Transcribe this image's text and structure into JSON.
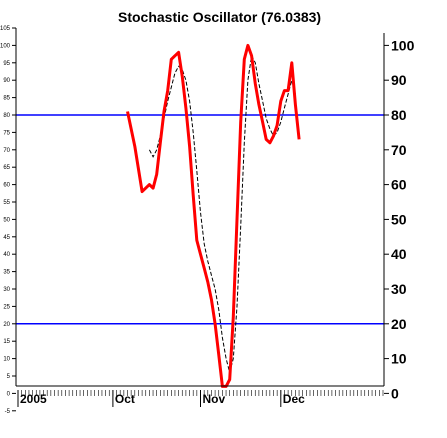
{
  "chart_data": {
    "type": "line",
    "title": "Stochastic Oscillator (76.0383)",
    "xlabel": "",
    "ylabel": "",
    "ylim": [
      -5,
      105
    ],
    "y_ticks_left": [
      "105",
      "100",
      "95",
      "90",
      "85",
      "80",
      "75",
      "70",
      "65",
      "60",
      "55",
      "50",
      "45",
      "40",
      "35",
      "30",
      "25",
      "20",
      "15",
      "10",
      "5",
      "0",
      "-5"
    ],
    "y_ticks_right": [
      "100",
      "90",
      "80",
      "70",
      "60",
      "50",
      "40",
      "30",
      "20",
      "10",
      "0"
    ],
    "reference_lines": [
      80,
      20
    ],
    "x_labels": [
      {
        "text": "2005",
        "index": 0
      },
      {
        "text": "Oct",
        "index": 26
      },
      {
        "text": "Nov",
        "index": 50
      },
      {
        "text": "Dec",
        "index": 72
      }
    ],
    "x_count": 101,
    "colors": {
      "k_line": "#ff0000",
      "d_line": "#000000",
      "reference": "#0000ff",
      "axis": "#000000"
    },
    "series": [
      {
        "values": [
          [
            30,
            81
          ],
          [
            32,
            71
          ],
          [
            34,
            58
          ],
          [
            36,
            60
          ],
          [
            37,
            59
          ],
          [
            38,
            63
          ],
          [
            39,
            72
          ],
          [
            40,
            81
          ],
          [
            41,
            87
          ],
          [
            42,
            96
          ],
          [
            43,
            97
          ],
          [
            44,
            98
          ],
          [
            45,
            91
          ],
          [
            46,
            82
          ],
          [
            47,
            71
          ],
          [
            48,
            57
          ],
          [
            49,
            44
          ],
          [
            50,
            40
          ],
          [
            51,
            36
          ],
          [
            52,
            32
          ],
          [
            53,
            27
          ],
          [
            54,
            20
          ],
          [
            55,
            11
          ],
          [
            56,
            2
          ],
          [
            57,
            2
          ],
          [
            58,
            4
          ],
          [
            59,
            22
          ],
          [
            60,
            50
          ],
          [
            61,
            78
          ],
          [
            62,
            96
          ],
          [
            63,
            100
          ],
          [
            64,
            97
          ],
          [
            65,
            89
          ],
          [
            66,
            83
          ],
          [
            67,
            78
          ],
          [
            68,
            73
          ],
          [
            69,
            72
          ],
          [
            70,
            74
          ],
          [
            71,
            77
          ],
          [
            72,
            84
          ],
          [
            73,
            87
          ],
          [
            74,
            87
          ],
          [
            75,
            95
          ],
          [
            76,
            83
          ],
          [
            77,
            73
          ]
        ]
      },
      {
        "values": [
          [
            36,
            70
          ],
          [
            37,
            68
          ],
          [
            38,
            70
          ],
          [
            39,
            74
          ],
          [
            40,
            79
          ],
          [
            41,
            84
          ],
          [
            42,
            88
          ],
          [
            43,
            92
          ],
          [
            44,
            94
          ],
          [
            45,
            93
          ],
          [
            46,
            90
          ],
          [
            47,
            84
          ],
          [
            48,
            75
          ],
          [
            49,
            64
          ],
          [
            50,
            52
          ],
          [
            51,
            43
          ],
          [
            52,
            38
          ],
          [
            53,
            34
          ],
          [
            54,
            30
          ],
          [
            55,
            24
          ],
          [
            56,
            16
          ],
          [
            57,
            10
          ],
          [
            58,
            6
          ],
          [
            59,
            10
          ],
          [
            60,
            25
          ],
          [
            61,
            48
          ],
          [
            62,
            72
          ],
          [
            63,
            90
          ],
          [
            64,
            97
          ],
          [
            65,
            95
          ],
          [
            66,
            89
          ],
          [
            67,
            84
          ],
          [
            68,
            79
          ],
          [
            69,
            76
          ],
          [
            70,
            74
          ],
          [
            71,
            75
          ],
          [
            72,
            78
          ],
          [
            73,
            82
          ],
          [
            74,
            86
          ],
          [
            75,
            90
          ],
          [
            76,
            86
          ]
        ]
      }
    ]
  }
}
